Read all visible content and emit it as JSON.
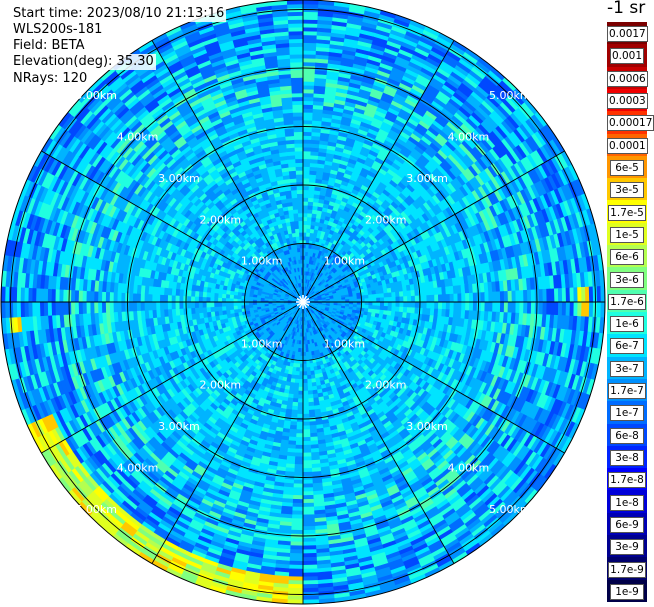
{
  "header": {
    "start_time": "Start time: 2023/08/10 21:13:16",
    "instrument": "WLS200s-181",
    "field": "Field: BETA",
    "elevation": "Elevation(deg): 35.30",
    "nrays": "NRays: 120"
  },
  "colorbar": {
    "unit": "-1 sr",
    "labels": [
      "0.0017",
      "0.001",
      "0.0006",
      "0.0003",
      "0.00017",
      "0.0001",
      "6e-5",
      "3e-5",
      "1.7e-5",
      "1e-5",
      "6e-6",
      "3e-6",
      "1.7e-6",
      "1e-6",
      "6e-7",
      "3e-7",
      "1.7e-7",
      "1e-7",
      "6e-8",
      "3e-8",
      "1.7e-8",
      "1e-8",
      "6e-9",
      "3e-9",
      "1.7e-9",
      "1e-9"
    ],
    "colors": [
      "#7a0000",
      "#a00000",
      "#c80000",
      "#f00000",
      "#ff3200",
      "#ff6400",
      "#ff9600",
      "#ffc800",
      "#ffff00",
      "#e0ff20",
      "#b4ff50",
      "#80ff80",
      "#50ffb0",
      "#20ffe0",
      "#00e4ff",
      "#00b4ff",
      "#0090ff",
      "#006cff",
      "#0048ff",
      "#0024ff",
      "#0000ff",
      "#0000d8",
      "#0000b4",
      "#000090",
      "#00006c",
      "#000048"
    ]
  },
  "chart_data": {
    "type": "ppi",
    "field": "BETA",
    "elevation_deg": 35.3,
    "n_rays": 120,
    "max_range_km": 5.2,
    "range_ring_labels": [
      "1.00km",
      "2.00km",
      "3.00km",
      "4.00km",
      "5.00km"
    ],
    "spoke_azimuths_deg": [
      0,
      30,
      60,
      90,
      120,
      150,
      180,
      210,
      240,
      270,
      300,
      330
    ],
    "high_backscatter_features": [
      {
        "azimuth_deg": [
          180,
          245
        ],
        "range_km": [
          4.7,
          5.2
        ],
        "level": "1e-5 to 3e-6"
      },
      {
        "azimuth_deg": [
          263,
          268
        ],
        "range_km": [
          4.8,
          5.0
        ],
        "level": "1e-5"
      },
      {
        "azimuth_deg": [
          87,
          92
        ],
        "range_km": [
          4.7,
          4.9
        ],
        "level": "3e-5"
      }
    ]
  }
}
